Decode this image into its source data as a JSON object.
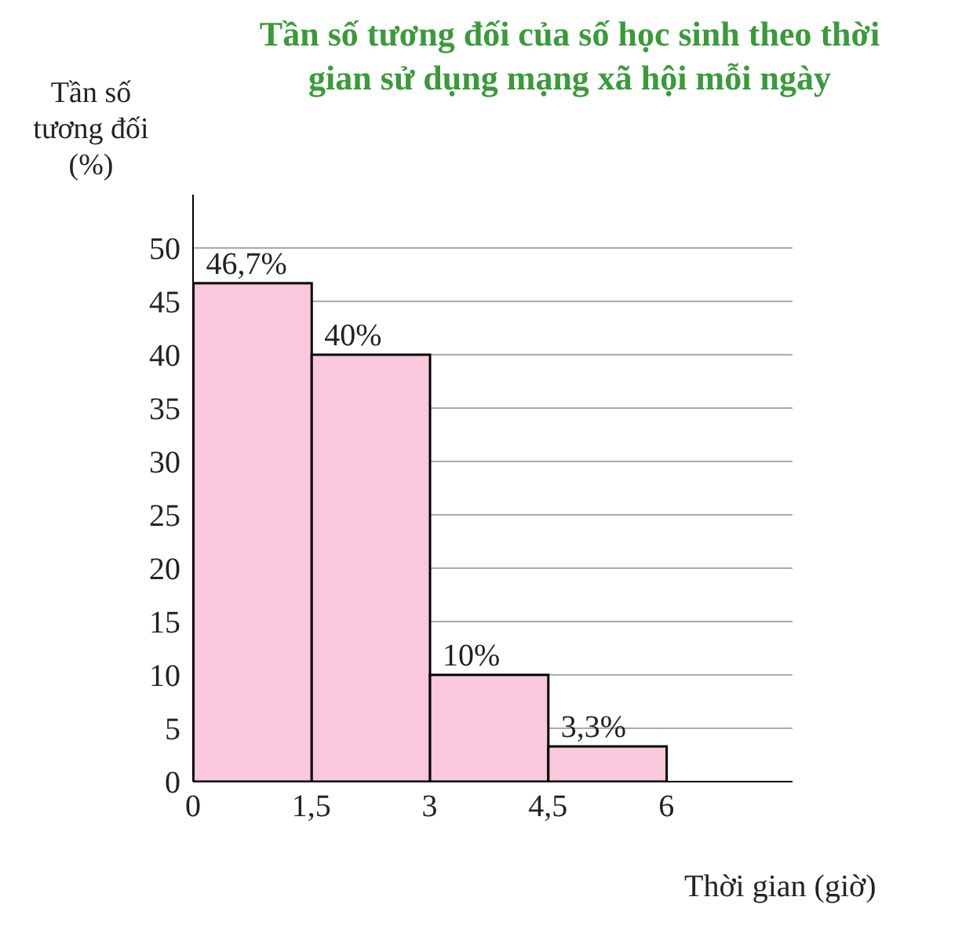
{
  "chart_data": {
    "type": "histogram",
    "title": "Tần số tương đối của số học sinh theo thời gian sử dụng mạng xã hội mỗi ngày",
    "ylabel": "Tần số tương đối (%)",
    "xlabel": "Thời gian (giờ)",
    "bins": [
      0,
      1.5,
      3,
      4.5,
      6
    ],
    "values": [
      46.7,
      40,
      10,
      3.3
    ],
    "value_labels": [
      "46,7%",
      "40%",
      "10%",
      "3,3%"
    ],
    "color": "#f9c8dc",
    "xlim": [
      0,
      7.6
    ],
    "xticks": [
      0,
      {
        "value": 1.5,
        "label": "1,5"
      },
      3,
      {
        "value": 4.5,
        "label": "4,5"
      },
      6
    ],
    "ylim": [
      0,
      55
    ],
    "yticks": [
      0,
      5,
      10,
      15,
      20,
      25,
      30,
      35,
      40,
      45,
      50
    ],
    "grid": "y"
  }
}
